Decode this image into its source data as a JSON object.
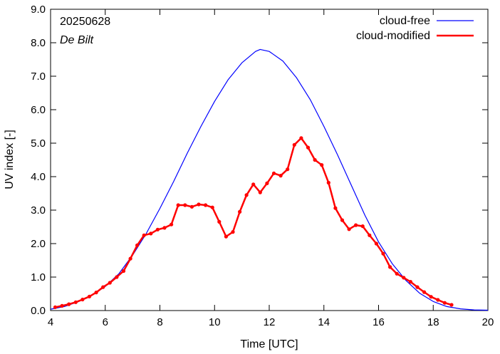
{
  "chart_data": {
    "type": "line",
    "annotations": [
      "20250628",
      "De Bilt"
    ],
    "xlabel": "Time  [UTC]",
    "ylabel": "UV index  [-]",
    "xlim": [
      4,
      20
    ],
    "ylim": [
      0,
      9
    ],
    "x_ticks": [
      4,
      6,
      8,
      10,
      12,
      14,
      16,
      18,
      20
    ],
    "x_tick_labels": [
      "4",
      "6",
      "8",
      "10",
      "12",
      "14",
      "16",
      "18",
      "20"
    ],
    "y_ticks": [
      0,
      1,
      2,
      3,
      4,
      5,
      6,
      7,
      8,
      9
    ],
    "y_tick_labels": [
      "0.0",
      "1.0",
      "2.0",
      "3.0",
      "4.0",
      "5.0",
      "6.0",
      "7.0",
      "8.0",
      "9.0"
    ],
    "grid": false,
    "legend_position": "top-right",
    "series": [
      {
        "name": "cloud-free",
        "color": "#0000ff",
        "markers": false,
        "x": [
          4.0,
          4.5,
          5.0,
          5.5,
          6.0,
          6.5,
          7.0,
          7.5,
          8.0,
          8.5,
          9.0,
          9.5,
          10.0,
          10.5,
          11.0,
          11.5,
          11.67,
          12.0,
          12.5,
          13.0,
          13.5,
          14.0,
          14.5,
          15.0,
          15.5,
          16.0,
          16.5,
          17.0,
          17.5,
          18.0,
          18.5,
          19.0,
          19.5,
          20.0
        ],
        "y": [
          0.04,
          0.12,
          0.26,
          0.45,
          0.72,
          1.1,
          1.65,
          2.3,
          3.05,
          3.85,
          4.7,
          5.5,
          6.25,
          6.9,
          7.4,
          7.74,
          7.8,
          7.74,
          7.45,
          6.95,
          6.3,
          5.5,
          4.65,
          3.75,
          2.85,
          2.05,
          1.4,
          0.9,
          0.52,
          0.27,
          0.12,
          0.05,
          0.02,
          0.01
        ]
      },
      {
        "name": "cloud-modified",
        "color": "#ff0000",
        "markers": true,
        "x": [
          4.17,
          4.42,
          4.67,
          4.92,
          5.17,
          5.42,
          5.67,
          5.92,
          6.17,
          6.42,
          6.67,
          6.92,
          7.17,
          7.42,
          7.67,
          7.92,
          8.17,
          8.42,
          8.67,
          8.92,
          9.17,
          9.42,
          9.67,
          9.92,
          10.17,
          10.42,
          10.67,
          10.92,
          11.17,
          11.42,
          11.67,
          11.92,
          12.17,
          12.42,
          12.67,
          12.92,
          13.17,
          13.42,
          13.67,
          13.92,
          14.17,
          14.42,
          14.67,
          14.92,
          15.17,
          15.42,
          15.67,
          15.92,
          16.17,
          16.42,
          16.67,
          16.92,
          17.17,
          17.42,
          17.67,
          17.92,
          18.17,
          18.42,
          18.67
        ],
        "y": [
          0.1,
          0.14,
          0.19,
          0.25,
          0.33,
          0.42,
          0.54,
          0.7,
          0.83,
          1.0,
          1.18,
          1.55,
          1.95,
          2.25,
          2.3,
          2.42,
          2.47,
          2.57,
          3.15,
          3.15,
          3.1,
          3.17,
          3.15,
          3.08,
          2.65,
          2.21,
          2.35,
          2.95,
          3.45,
          3.77,
          3.53,
          3.8,
          4.1,
          4.03,
          4.22,
          4.95,
          5.15,
          4.87,
          4.5,
          4.35,
          3.82,
          3.06,
          2.7,
          2.43,
          2.55,
          2.52,
          2.25,
          2.0,
          1.7,
          1.3,
          1.1,
          0.98,
          0.86,
          0.7,
          0.55,
          0.41,
          0.32,
          0.23,
          0.17
        ]
      }
    ]
  }
}
